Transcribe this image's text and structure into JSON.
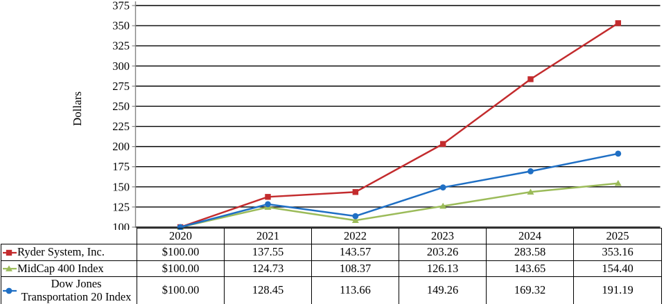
{
  "chart_data": {
    "type": "line",
    "ylabel": "Dollars",
    "categories": [
      "2020",
      "2021",
      "2022",
      "2023",
      "2024",
      "2025"
    ],
    "ylim": [
      100,
      375
    ],
    "ytick_step": 25,
    "yticks": [
      100,
      125,
      150,
      175,
      200,
      225,
      250,
      275,
      300,
      325,
      350,
      375
    ],
    "grid": "horizontal",
    "gridline_color": "#000000",
    "axis_color": "#848484",
    "legend_position": "table-left",
    "series": [
      {
        "name": "Ryder System, Inc.",
        "marker": "square",
        "color": "#C32B2D",
        "values": [
          100.0,
          137.55,
          143.57,
          203.26,
          283.58,
          353.16
        ]
      },
      {
        "name": "MidCap 400 Index",
        "marker": "triangle",
        "color": "#9BBB59",
        "values": [
          100.0,
          124.73,
          108.37,
          126.13,
          143.65,
          154.4
        ]
      },
      {
        "name": "Dow Jones Transportation 20 Index",
        "marker": "circle",
        "color": "#1F6FC4",
        "values": [
          100.0,
          128.45,
          113.66,
          149.26,
          169.32,
          191.19
        ]
      }
    ]
  },
  "table": {
    "year_headers": [
      "2020",
      "2021",
      "2022",
      "2023",
      "2024",
      "2025"
    ],
    "rows": [
      {
        "label": "Ryder System, Inc.",
        "values": [
          "$100.00",
          "137.55",
          "143.57",
          "203.26",
          "283.58",
          "353.16"
        ]
      },
      {
        "label": "MidCap 400 Index",
        "values": [
          "$100.00",
          "124.73",
          "108.37",
          "126.13",
          "143.65",
          "154.40"
        ]
      },
      {
        "label": "Dow Jones Transportation 20 Index",
        "values": [
          "$100.00",
          "128.45",
          "113.66",
          "149.26",
          "169.32",
          "191.19"
        ]
      }
    ]
  }
}
